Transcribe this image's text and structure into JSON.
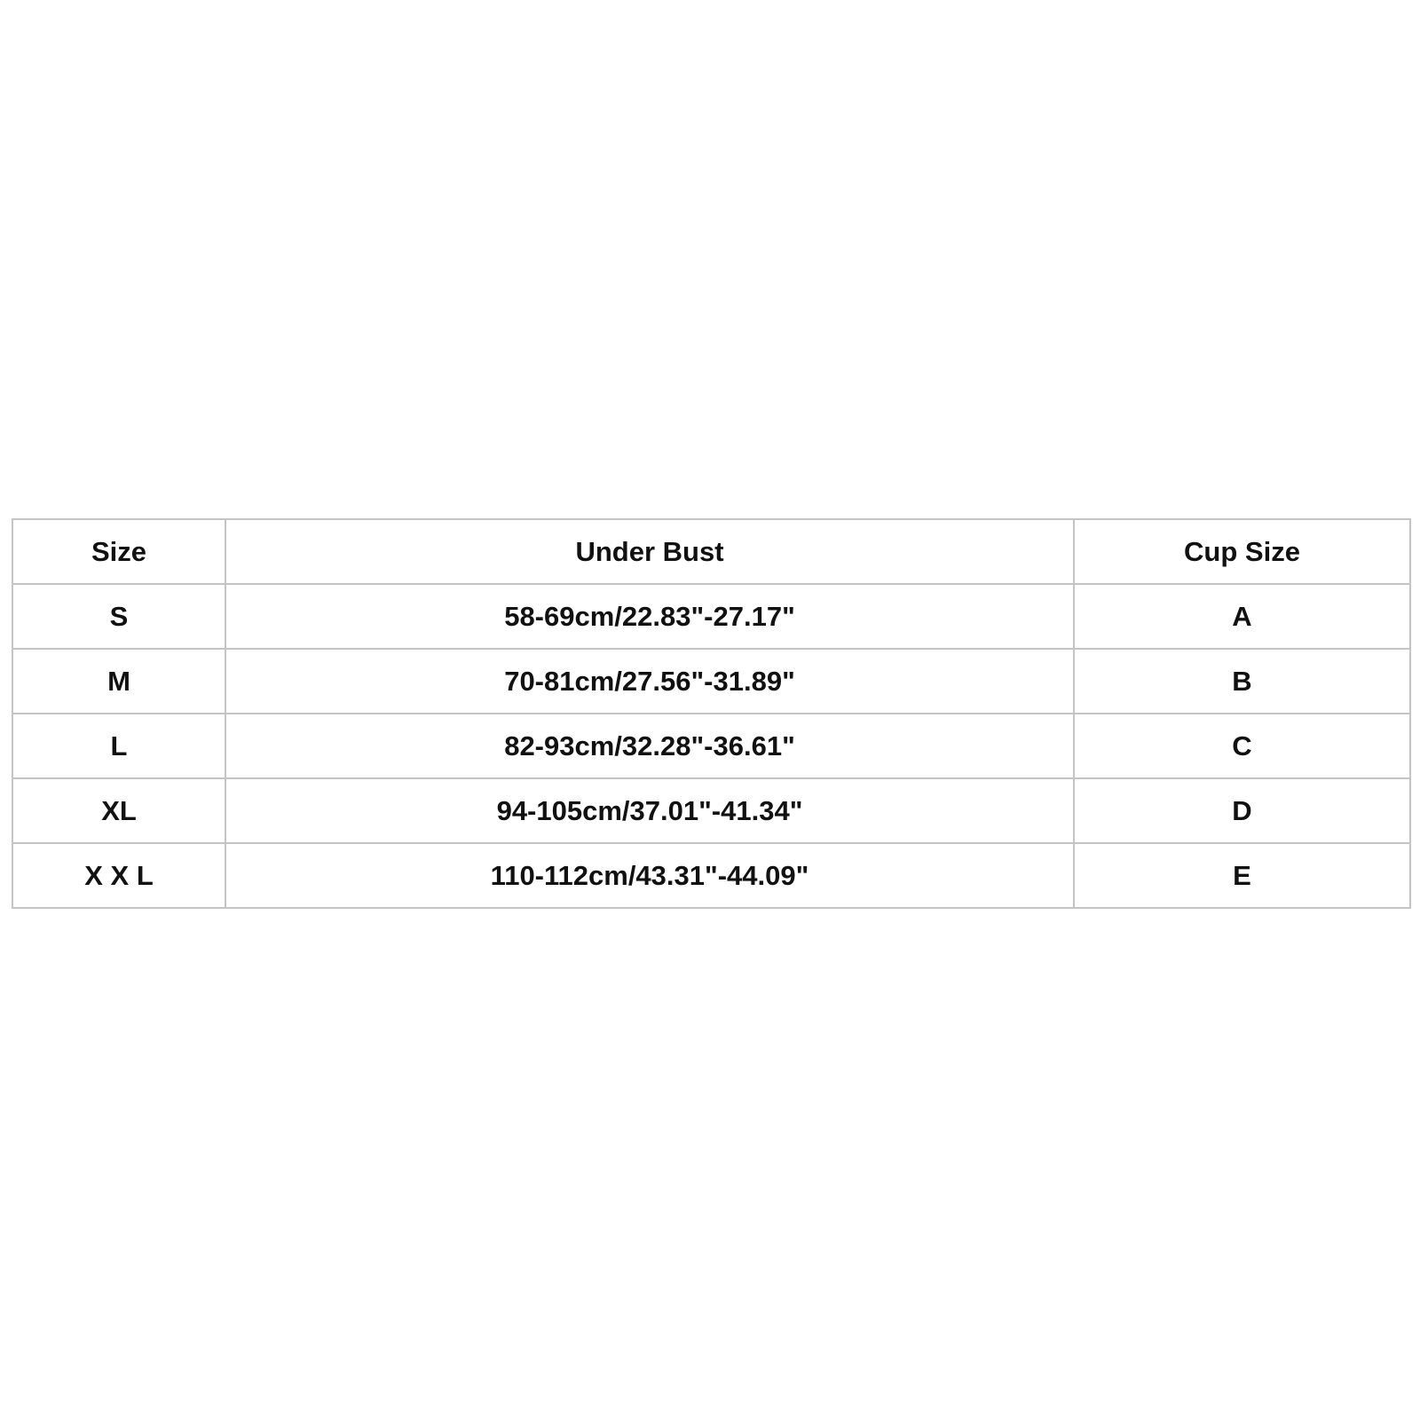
{
  "table": {
    "headers": [
      "Size",
      "Under Bust",
      "Cup Size"
    ],
    "rows": [
      [
        "S",
        "58-69cm/22.83\"-27.17\"",
        "A"
      ],
      [
        "M",
        "70-81cm/27.56\"-31.89\"",
        "B"
      ],
      [
        "L",
        "82-93cm/32.28\"-36.61\"",
        "C"
      ],
      [
        "XL",
        "94-105cm/37.01\"-41.34\"",
        "D"
      ],
      [
        "X X L",
        "110-112cm/43.31\"-44.09\"",
        "E"
      ]
    ]
  }
}
